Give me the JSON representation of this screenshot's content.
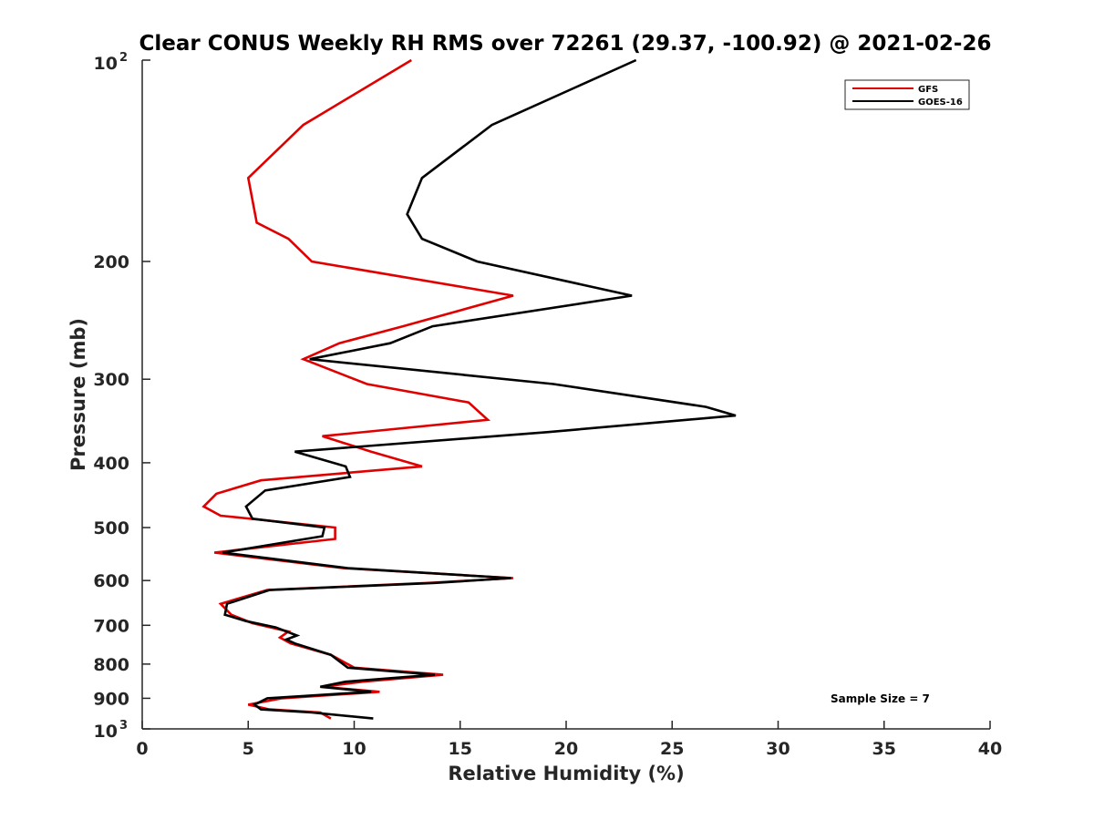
{
  "chart_data": {
    "type": "line",
    "title": "Clear CONUS Weekly RH RMS over 72261 (29.37, -100.92) @ 2021-02-26",
    "xlabel": "Relative Humidity (%)",
    "ylabel": "Pressure (mb)",
    "xlim": [
      0,
      40
    ],
    "ylim": [
      100,
      1000
    ],
    "y_scale": "log",
    "y_reversed": true,
    "grid": false,
    "legend_position": "top-right",
    "x_ticks": [
      0,
      5,
      10,
      15,
      20,
      25,
      30,
      35,
      40
    ],
    "x_tick_labels": [
      "0",
      "5",
      "10",
      "15",
      "20",
      "25",
      "30",
      "35",
      "40"
    ],
    "y_ticks": [
      200,
      300,
      400,
      500,
      600,
      700,
      800,
      900
    ],
    "y_tick_labels": [
      "200",
      "300",
      "400",
      "500",
      "600",
      "700",
      "800",
      "900"
    ],
    "y_top_label": {
      "base": "10",
      "exp": "2"
    },
    "y_bottom_label": {
      "base": "10",
      "exp": "3"
    },
    "annotation": "Sample Size = 7",
    "series": [
      {
        "name": "GFS",
        "color": "#e00000",
        "points": [
          [
            12.7,
            100
          ],
          [
            7.6,
            125
          ],
          [
            5.0,
            150
          ],
          [
            5.4,
            175
          ],
          [
            6.9,
            185
          ],
          [
            8.0,
            200
          ],
          [
            17.5,
            225
          ],
          [
            12.3,
            250
          ],
          [
            9.3,
            265
          ],
          [
            7.6,
            280
          ],
          [
            10.6,
            305
          ],
          [
            15.4,
            325
          ],
          [
            16.3,
            345
          ],
          [
            8.5,
            365
          ],
          [
            10.8,
            385
          ],
          [
            13.2,
            405
          ],
          [
            5.6,
            425
          ],
          [
            3.5,
            445
          ],
          [
            2.9,
            465
          ],
          [
            3.7,
            480
          ],
          [
            9.1,
            500
          ],
          [
            9.1,
            520
          ],
          [
            3.4,
            545
          ],
          [
            9.5,
            575
          ],
          [
            17.5,
            595
          ],
          [
            13.5,
            605
          ],
          [
            5.9,
            620
          ],
          [
            3.7,
            650
          ],
          [
            4.2,
            675
          ],
          [
            5.2,
            695
          ],
          [
            6.9,
            715
          ],
          [
            6.5,
            730
          ],
          [
            7.0,
            745
          ],
          [
            8.9,
            775
          ],
          [
            10.0,
            810
          ],
          [
            14.2,
            830
          ],
          [
            10.4,
            850
          ],
          [
            8.5,
            865
          ],
          [
            11.2,
            880
          ],
          [
            6.6,
            900
          ],
          [
            5.0,
            920
          ],
          [
            6.0,
            935
          ],
          [
            8.4,
            945
          ],
          [
            8.9,
            965
          ]
        ]
      },
      {
        "name": "GOES-16",
        "color": "#000000",
        "points": [
          [
            23.3,
            100
          ],
          [
            16.5,
            125
          ],
          [
            13.2,
            150
          ],
          [
            12.5,
            170
          ],
          [
            13.2,
            185
          ],
          [
            15.8,
            200
          ],
          [
            23.1,
            225
          ],
          [
            13.7,
            250
          ],
          [
            11.7,
            265
          ],
          [
            7.9,
            280
          ],
          [
            19.4,
            305
          ],
          [
            26.6,
            330
          ],
          [
            28.0,
            340
          ],
          [
            19.1,
            360
          ],
          [
            7.2,
            385
          ],
          [
            9.6,
            405
          ],
          [
            9.8,
            420
          ],
          [
            5.8,
            440
          ],
          [
            4.9,
            465
          ],
          [
            5.2,
            485
          ],
          [
            8.6,
            500
          ],
          [
            8.5,
            515
          ],
          [
            3.8,
            545
          ],
          [
            9.7,
            575
          ],
          [
            17.4,
            595
          ],
          [
            13.8,
            605
          ],
          [
            6.0,
            620
          ],
          [
            4.0,
            650
          ],
          [
            3.9,
            675
          ],
          [
            4.9,
            690
          ],
          [
            6.3,
            705
          ],
          [
            7.3,
            725
          ],
          [
            6.8,
            735
          ],
          [
            7.2,
            745
          ],
          [
            8.9,
            775
          ],
          [
            9.7,
            810
          ],
          [
            13.8,
            830
          ],
          [
            9.6,
            850
          ],
          [
            8.4,
            865
          ],
          [
            10.8,
            880
          ],
          [
            5.9,
            900
          ],
          [
            5.3,
            920
          ],
          [
            5.6,
            935
          ],
          [
            8.0,
            945
          ],
          [
            10.9,
            965
          ]
        ]
      }
    ]
  }
}
